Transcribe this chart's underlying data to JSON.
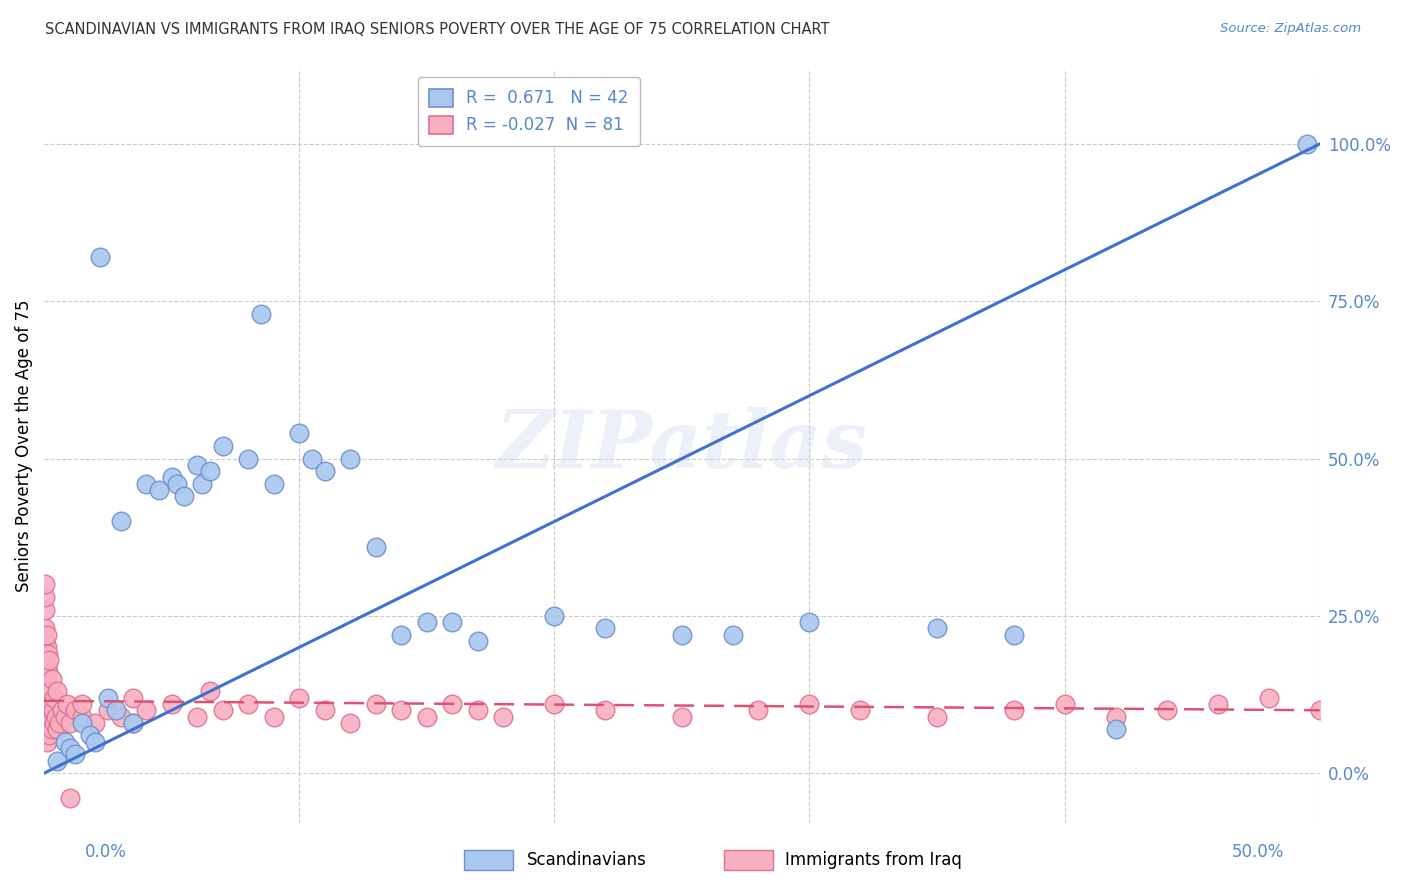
{
  "title": "SCANDINAVIAN VS IMMIGRANTS FROM IRAQ SENIORS POVERTY OVER THE AGE OF 75 CORRELATION CHART",
  "source": "Source: ZipAtlas.com",
  "ylabel": "Seniors Poverty Over the Age of 75",
  "ytick_values": [
    0.0,
    25.0,
    50.0,
    75.0,
    100.0
  ],
  "xlim": [
    0.0,
    50.0
  ],
  "ylim": [
    -8.0,
    112.0
  ],
  "legend_label1": "Scandinavians",
  "legend_label2": "Immigrants from Iraq",
  "R1": 0.671,
  "N1": 42,
  "R2": -0.027,
  "N2": 81,
  "scatter1_color": "#a8c8f0",
  "scatter1_edge": "#7090c8",
  "scatter2_color": "#f8b0c0",
  "scatter2_edge": "#e07090",
  "line1_color": "#4070d0",
  "line2_color": "#e05070",
  "watermark": "ZIPatlas",
  "title_color": "#333333",
  "axis_color": "#5588cc",
  "grid_color": "#cccccc",
  "scandinavian_points": [
    [
      0.5,
      2.0
    ],
    [
      0.8,
      5.0
    ],
    [
      1.0,
      4.0
    ],
    [
      1.2,
      3.0
    ],
    [
      1.5,
      8.0
    ],
    [
      1.8,
      6.0
    ],
    [
      2.0,
      5.0
    ],
    [
      2.2,
      82.0
    ],
    [
      2.5,
      12.0
    ],
    [
      2.8,
      10.0
    ],
    [
      3.0,
      40.0
    ],
    [
      3.5,
      8.0
    ],
    [
      4.0,
      46.0
    ],
    [
      4.5,
      45.0
    ],
    [
      5.0,
      47.0
    ],
    [
      5.2,
      46.0
    ],
    [
      5.5,
      44.0
    ],
    [
      6.0,
      49.0
    ],
    [
      6.2,
      46.0
    ],
    [
      6.5,
      48.0
    ],
    [
      7.0,
      52.0
    ],
    [
      8.0,
      50.0
    ],
    [
      8.5,
      73.0
    ],
    [
      9.0,
      46.0
    ],
    [
      10.0,
      54.0
    ],
    [
      10.5,
      50.0
    ],
    [
      11.0,
      48.0
    ],
    [
      12.0,
      50.0
    ],
    [
      13.0,
      36.0
    ],
    [
      14.0,
      22.0
    ],
    [
      15.0,
      24.0
    ],
    [
      16.0,
      24.0
    ],
    [
      17.0,
      21.0
    ],
    [
      20.0,
      25.0
    ],
    [
      22.0,
      23.0
    ],
    [
      25.0,
      22.0
    ],
    [
      27.0,
      22.0
    ],
    [
      30.0,
      24.0
    ],
    [
      35.0,
      23.0
    ],
    [
      38.0,
      22.0
    ],
    [
      42.0,
      7.0
    ],
    [
      49.5,
      100.0
    ]
  ],
  "iraq_points": [
    [
      0.05,
      6.0
    ],
    [
      0.05,
      9.0
    ],
    [
      0.05,
      11.0
    ],
    [
      0.05,
      13.0
    ],
    [
      0.05,
      16.0
    ],
    [
      0.05,
      18.0
    ],
    [
      0.05,
      21.0
    ],
    [
      0.05,
      23.0
    ],
    [
      0.05,
      26.0
    ],
    [
      0.05,
      28.0
    ],
    [
      0.05,
      30.0
    ],
    [
      0.1,
      5.0
    ],
    [
      0.1,
      8.0
    ],
    [
      0.1,
      11.0
    ],
    [
      0.1,
      14.0
    ],
    [
      0.1,
      17.0
    ],
    [
      0.1,
      20.0
    ],
    [
      0.1,
      22.0
    ],
    [
      0.15,
      7.0
    ],
    [
      0.15,
      12.0
    ],
    [
      0.15,
      16.0
    ],
    [
      0.15,
      19.0
    ],
    [
      0.2,
      6.0
    ],
    [
      0.2,
      10.0
    ],
    [
      0.2,
      14.0
    ],
    [
      0.2,
      18.0
    ],
    [
      0.25,
      8.0
    ],
    [
      0.25,
      13.0
    ],
    [
      0.3,
      7.0
    ],
    [
      0.3,
      11.0
    ],
    [
      0.3,
      15.0
    ],
    [
      0.35,
      10.0
    ],
    [
      0.4,
      8.0
    ],
    [
      0.4,
      12.0
    ],
    [
      0.45,
      9.0
    ],
    [
      0.5,
      7.0
    ],
    [
      0.5,
      13.0
    ],
    [
      0.6,
      8.0
    ],
    [
      0.7,
      10.0
    ],
    [
      0.8,
      9.0
    ],
    [
      0.9,
      11.0
    ],
    [
      1.0,
      8.0
    ],
    [
      1.2,
      10.0
    ],
    [
      1.5,
      9.0
    ],
    [
      1.5,
      11.0
    ],
    [
      2.0,
      8.0
    ],
    [
      2.5,
      10.0
    ],
    [
      3.0,
      9.0
    ],
    [
      3.5,
      8.0
    ],
    [
      3.5,
      12.0
    ],
    [
      4.0,
      10.0
    ],
    [
      5.0,
      11.0
    ],
    [
      6.0,
      9.0
    ],
    [
      6.5,
      13.0
    ],
    [
      7.0,
      10.0
    ],
    [
      8.0,
      11.0
    ],
    [
      9.0,
      9.0
    ],
    [
      10.0,
      12.0
    ],
    [
      11.0,
      10.0
    ],
    [
      12.0,
      8.0
    ],
    [
      13.0,
      11.0
    ],
    [
      14.0,
      10.0
    ],
    [
      15.0,
      9.0
    ],
    [
      16.0,
      11.0
    ],
    [
      17.0,
      10.0
    ],
    [
      18.0,
      9.0
    ],
    [
      20.0,
      11.0
    ],
    [
      22.0,
      10.0
    ],
    [
      25.0,
      9.0
    ],
    [
      28.0,
      10.0
    ],
    [
      30.0,
      11.0
    ],
    [
      32.0,
      10.0
    ],
    [
      35.0,
      9.0
    ],
    [
      38.0,
      10.0
    ],
    [
      40.0,
      11.0
    ],
    [
      42.0,
      9.0
    ],
    [
      44.0,
      10.0
    ],
    [
      46.0,
      11.0
    ],
    [
      48.0,
      12.0
    ],
    [
      50.0,
      10.0
    ],
    [
      1.0,
      -4.0
    ]
  ],
  "line1_x": [
    0.0,
    50.0
  ],
  "line1_y": [
    0.0,
    100.0
  ],
  "line2_x": [
    0.0,
    50.0
  ],
  "line2_y": [
    11.5,
    10.0
  ]
}
